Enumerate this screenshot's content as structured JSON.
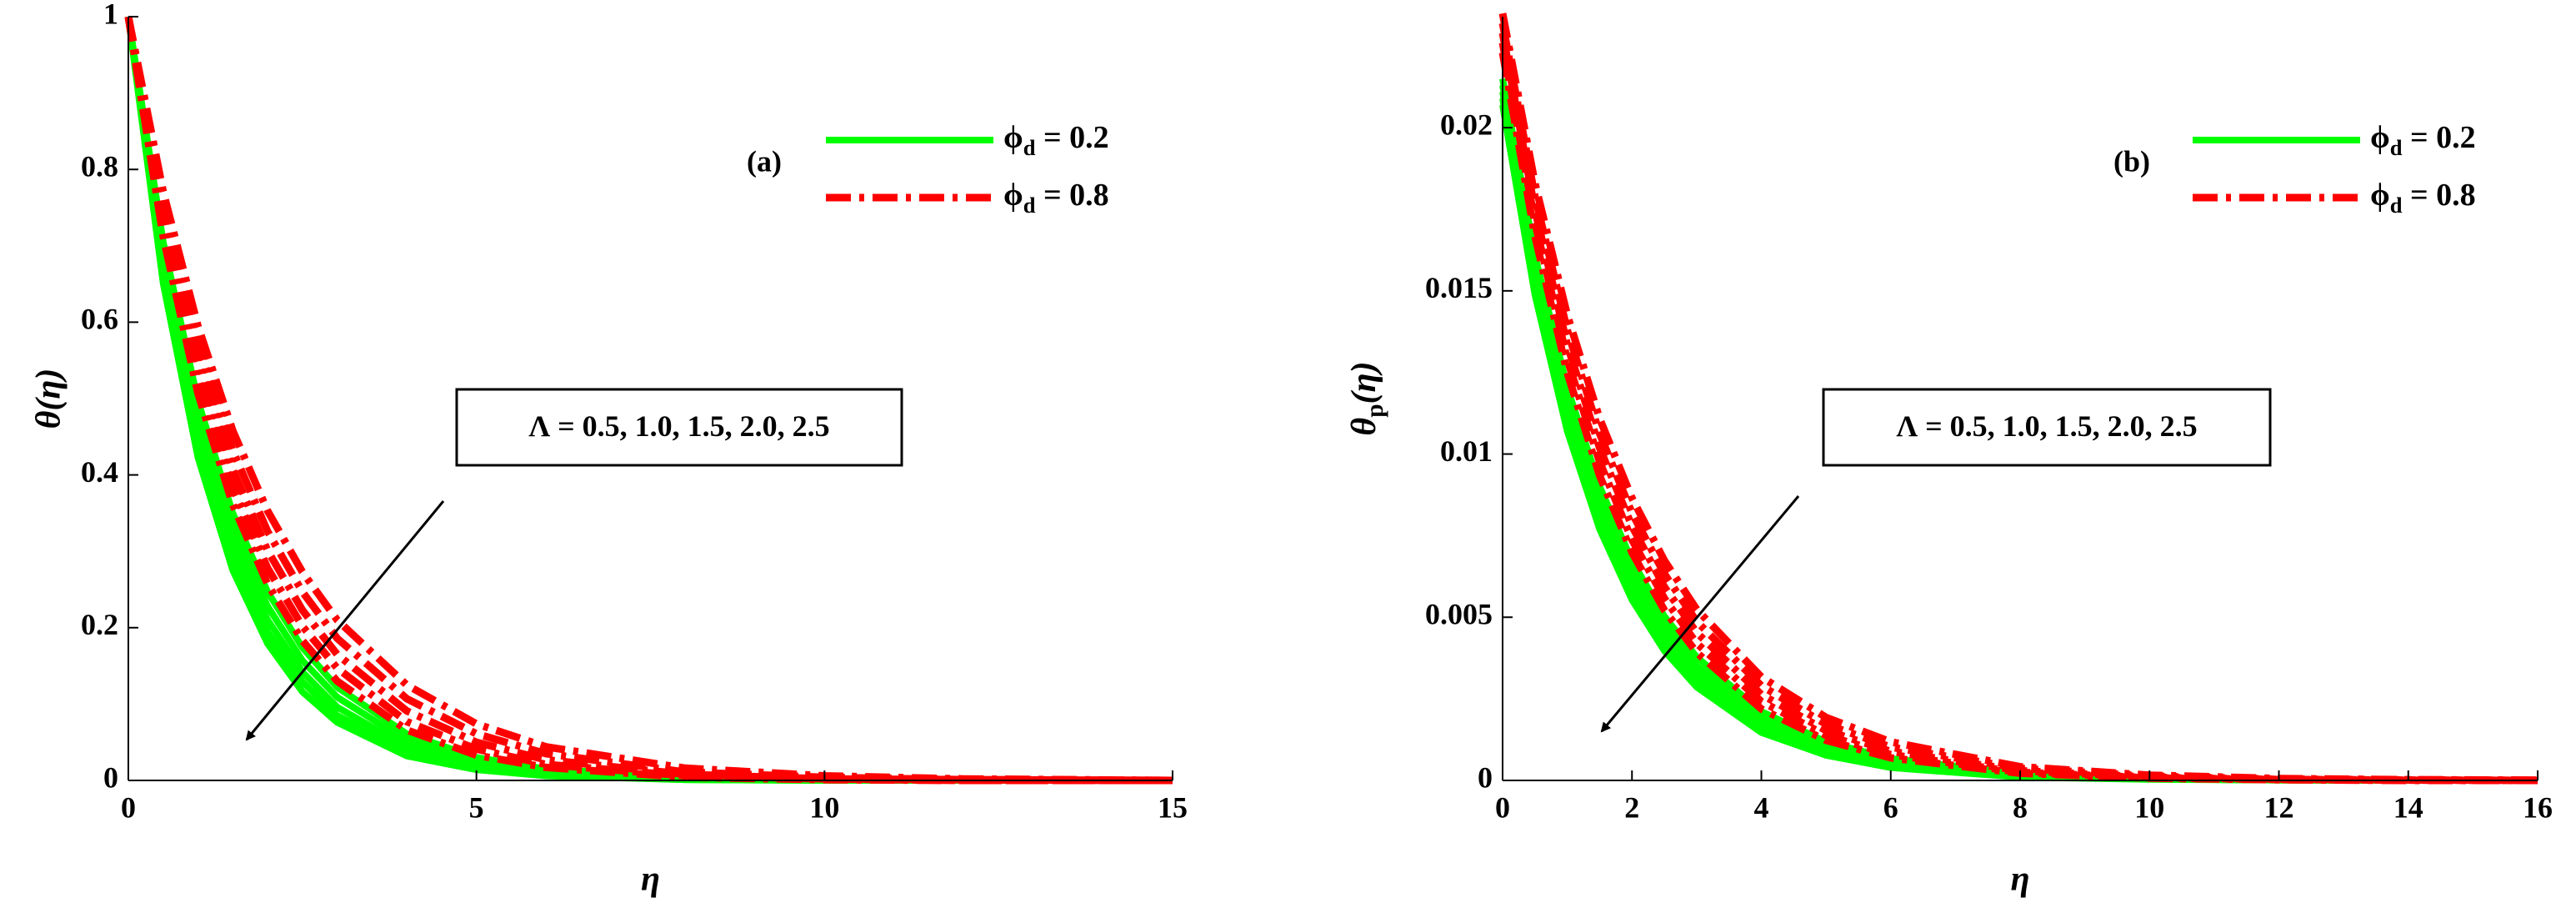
{
  "chart_data": [
    {
      "type": "line",
      "panel_label": "(a)",
      "xlabel": "η",
      "ylabel": "θ(η)",
      "annotation": "Λ = 0.5, 1.0, 1.5, 2.0, 2.5",
      "xlim": [
        0,
        15
      ],
      "ylim": [
        0,
        1
      ],
      "xticks": [
        0,
        5,
        10,
        15
      ],
      "yticks": [
        0,
        0.2,
        0.4,
        0.6,
        0.8,
        1
      ],
      "x": [
        0,
        0.5,
        1,
        1.5,
        2,
        2.5,
        3,
        4,
        5,
        6,
        8,
        10,
        12,
        15
      ],
      "series": [
        {
          "name": "ϕd = 0.2",
          "color": "#00ff00",
          "style": "solid",
          "curves": [
            [
              1,
              0.705,
              0.497,
              0.35,
              0.247,
              0.174,
              0.122,
              0.061,
              0.03,
              0.015,
              0.004,
              0.001,
              0,
              0
            ],
            [
              1,
              0.691,
              0.477,
              0.33,
              0.228,
              0.157,
              0.109,
              0.052,
              0.025,
              0.012,
              0.003,
              0.001,
              0,
              0
            ],
            [
              1,
              0.677,
              0.458,
              0.31,
              0.21,
              0.142,
              0.096,
              0.044,
              0.02,
              0.009,
              0.002,
              0,
              0,
              0
            ],
            [
              1,
              0.664,
              0.44,
              0.292,
              0.194,
              0.129,
              0.085,
              0.038,
              0.017,
              0.007,
              0.001,
              0,
              0,
              0
            ],
            [
              1,
              0.651,
              0.423,
              0.275,
              0.179,
              0.116,
              0.076,
              0.032,
              0.014,
              0.006,
              0.001,
              0,
              0,
              0
            ]
          ]
        },
        {
          "name": "ϕd = 0.8",
          "color": "#ff0000",
          "style": "dashdot",
          "curves": [
            [
              1,
              0.771,
              0.595,
              0.458,
              0.353,
              0.273,
              0.21,
              0.125,
              0.074,
              0.044,
              0.016,
              0.006,
              0.002,
              0
            ],
            [
              1,
              0.756,
              0.571,
              0.432,
              0.326,
              0.247,
              0.186,
              0.107,
              0.061,
              0.035,
              0.011,
              0.004,
              0.001,
              0
            ],
            [
              1,
              0.741,
              0.549,
              0.407,
              0.301,
              0.223,
              0.165,
              0.091,
              0.05,
              0.027,
              0.008,
              0.002,
              0.001,
              0
            ],
            [
              1,
              0.726,
              0.527,
              0.383,
              0.278,
              0.202,
              0.147,
              0.077,
              0.041,
              0.021,
              0.006,
              0.002,
              0,
              0
            ],
            [
              1,
              0.712,
              0.507,
              0.361,
              0.257,
              0.183,
              0.13,
              0.066,
              0.033,
              0.017,
              0.004,
              0.001,
              0,
              0
            ]
          ]
        }
      ]
    },
    {
      "type": "line",
      "panel_label": "(b)",
      "xlabel": "η",
      "ylabel": "θp(η)",
      "annotation": "Λ = 0.5, 1.0, 1.5, 2.0, 2.5",
      "xlim": [
        0,
        16
      ],
      "ylim": [
        0,
        0.0234
      ],
      "xticks": [
        0,
        2,
        4,
        6,
        8,
        10,
        12,
        14,
        16
      ],
      "yticks": [
        0,
        0.005,
        0.01,
        0.015,
        0.02
      ],
      "x": [
        0,
        0.5,
        1,
        1.5,
        2,
        2.5,
        3,
        4,
        5,
        6,
        8,
        10,
        12,
        14,
        16
      ],
      "series": [
        {
          "name": "ϕd = 0.2",
          "color": "#00ff00",
          "style": "solid",
          "curves": [
            [
              0.0215,
              0.01608,
              0.01204,
              0.00901,
              0.00673,
              0.00503,
              0.00378,
              0.00211,
              0.00118,
              0.00067,
              0.00021,
              6e-05,
              2e-05,
              1e-05,
              0
            ],
            [
              0.0213,
              0.01578,
              0.01169,
              0.00867,
              0.00641,
              0.00475,
              0.00351,
              0.00194,
              0.00107,
              0.00058,
              0.00017,
              5e-05,
              2e-05,
              0,
              0
            ],
            [
              0.0211,
              0.01547,
              0.01135,
              0.00831,
              0.0061,
              0.00447,
              0.00329,
              0.00177,
              0.00095,
              0.00051,
              0.00015,
              4e-05,
              1e-05,
              0,
              0
            ],
            [
              0.0209,
              0.01517,
              0.01101,
              0.008,
              0.00581,
              0.00422,
              0.00307,
              0.00161,
              0.00086,
              0.00044,
              0.00013,
              4e-05,
              1e-05,
              0,
              0
            ],
            [
              0.0207,
              0.01488,
              0.0107,
              0.0077,
              0.00553,
              0.00397,
              0.00286,
              0.00147,
              0.00077,
              0.00039,
              0.0001,
              3e-05,
              1e-05,
              0,
              0
            ]
          ]
        },
        {
          "name": "ϕd = 0.8",
          "color": "#ff0000",
          "style": "dashdot",
          "curves": [
            [
              0.0235,
              0.0183,
              0.01426,
              0.01109,
              0.00865,
              0.00674,
              0.00524,
              0.00317,
              0.00193,
              0.00118,
              0.00042,
              0.00016,
              6e-05,
              2e-05,
              1e-05
            ],
            [
              0.0232,
              0.01789,
              0.0138,
              0.01063,
              0.00819,
              0.00633,
              0.00487,
              0.0029,
              0.00172,
              0.00102,
              0.00037,
              0.00013,
              4e-05,
              2e-05,
              0
            ],
            [
              0.0229,
              0.01747,
              0.01335,
              0.01019,
              0.00779,
              0.00593,
              0.00453,
              0.00263,
              0.00153,
              0.00089,
              0.0003,
              0.0001,
              3e-05,
              1e-05,
              0
            ],
            [
              0.0226,
              0.01709,
              0.0129,
              0.00976,
              0.00737,
              0.00558,
              0.0042,
              0.00242,
              0.00138,
              0.00079,
              0.00025,
              8e-05,
              3e-05,
              1e-05,
              0
            ],
            [
              0.0223,
              0.01668,
              0.01249,
              0.00934,
              0.00698,
              0.00522,
              0.00392,
              0.00219,
              0.00123,
              0.00069,
              0.00022,
              7e-05,
              2e-05,
              0,
              0
            ]
          ]
        }
      ]
    }
  ]
}
